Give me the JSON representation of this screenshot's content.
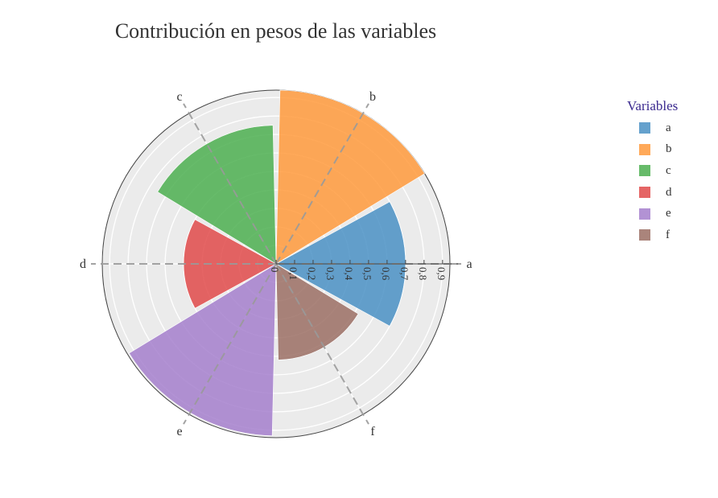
{
  "chart_data": {
    "type": "polar-bar",
    "title": "Contribución en pesos de las variables",
    "categories": [
      "a",
      "b",
      "c",
      "d",
      "e",
      "f"
    ],
    "values": [
      0.7,
      0.94,
      0.75,
      0.5,
      0.93,
      0.52
    ],
    "colors": [
      "#4a90c4",
      "#ff9a3c",
      "#4caf50",
      "#e04a4a",
      "#a47fcc",
      "#9b6e64"
    ],
    "radial_range": [
      0,
      0.94
    ],
    "radial_ticks": [
      "0",
      "0,1",
      "0,2",
      "0,3",
      "0,4",
      "0,5",
      "0,6",
      "0,7",
      "0,8",
      "0,9"
    ],
    "legend": {
      "title": "Variables",
      "placement": "right"
    },
    "grid": true
  }
}
